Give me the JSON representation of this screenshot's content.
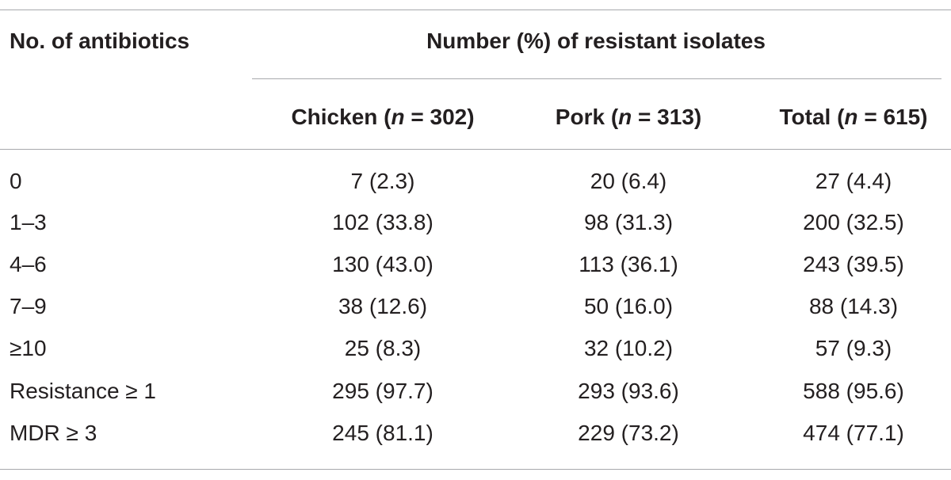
{
  "table": {
    "header": {
      "row_label": "No. of antibiotics",
      "group": "Number (%) of resistant isolates",
      "columns": [
        [
          "Chicken (",
          "n",
          " = 302)"
        ],
        [
          "Pork (",
          "n",
          " = 313)"
        ],
        [
          "Total (",
          "n",
          " = 615)"
        ]
      ]
    },
    "rows": [
      [
        "0",
        "7 (2.3)",
        "20 (6.4)",
        "27 (4.4)"
      ],
      [
        "1–3",
        "102 (33.8)",
        "98 (31.3)",
        "200 (32.5)"
      ],
      [
        "4–6",
        "130 (43.0)",
        "113 (36.1)",
        "243 (39.5)"
      ],
      [
        "7–9",
        "38 (12.6)",
        "50 (16.0)",
        "88 (14.3)"
      ],
      [
        "≥10",
        "25 (8.3)",
        "32 (10.2)",
        "57 (9.3)"
      ],
      [
        "Resistance ≥ 1",
        "295 (97.7)",
        "293 (93.6)",
        "588 (95.6)"
      ],
      [
        "MDR ≥ 3",
        "245 (81.1)",
        "229 (73.2)",
        "474 (77.1)"
      ]
    ]
  }
}
